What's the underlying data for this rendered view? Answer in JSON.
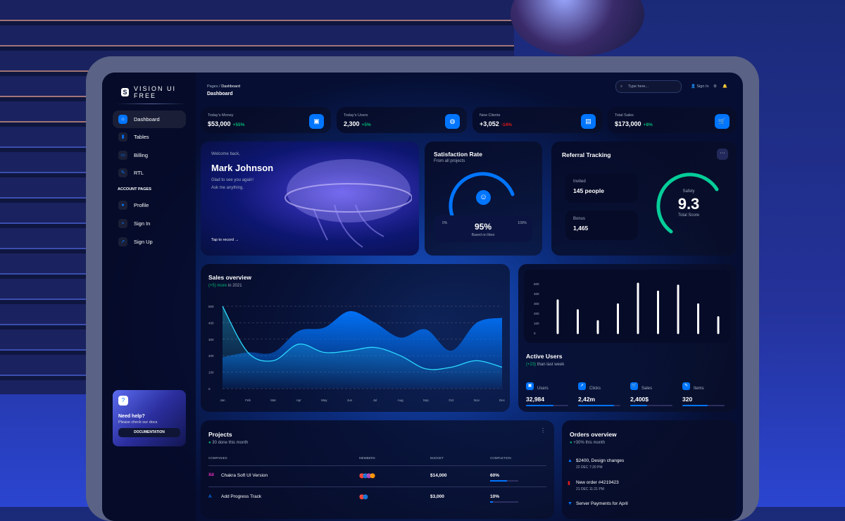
{
  "brand": "VISION UI FREE",
  "breadcrumb": {
    "parent": "Pages",
    "current": "Dashboard"
  },
  "page_title": "Dashboard",
  "search": {
    "placeholder": "Type here..."
  },
  "topbar": {
    "signin": "Sign In"
  },
  "sidebar": {
    "items": [
      {
        "label": "Dashboard",
        "icon": "home-icon",
        "active": true
      },
      {
        "label": "Tables",
        "icon": "chart-icon"
      },
      {
        "label": "Billing",
        "icon": "card-icon"
      },
      {
        "label": "RTL",
        "icon": "wrench-icon"
      }
    ],
    "section": "ACCOUNT PAGES",
    "account_items": [
      {
        "label": "Profile",
        "icon": "user-icon"
      },
      {
        "label": "Sign In",
        "icon": "document-icon"
      },
      {
        "label": "Sign Up",
        "icon": "rocket-icon"
      }
    ],
    "help": {
      "title": "Need help?",
      "subtitle": "Please check our docs",
      "button": "DOCUMENTATION"
    }
  },
  "stats": [
    {
      "label": "Today's Money",
      "value": "$53,000",
      "change": "+55%",
      "trend": "up",
      "icon": "wallet-icon"
    },
    {
      "label": "Today's Users",
      "value": "2,300",
      "change": "+5%",
      "trend": "up",
      "icon": "globe-icon"
    },
    {
      "label": "New Clients",
      "value": "+3,052",
      "change": "-14%",
      "trend": "down",
      "icon": "document-icon"
    },
    {
      "label": "Total Sales",
      "value": "$173,000",
      "change": "+8%",
      "trend": "up",
      "icon": "cart-icon"
    }
  ],
  "welcome": {
    "greeting": "Welcome back,",
    "name": "Mark Johnson",
    "line1": "Glad to see you again!",
    "line2": "Ask me anything.",
    "cta": "Tap to record"
  },
  "satisfaction": {
    "title": "Satisfaction Rate",
    "subtitle": "From all projects",
    "min": "0%",
    "max": "100%",
    "value": "95%",
    "note": "Based on likes",
    "level": 0.95
  },
  "referral": {
    "title": "Referral Tracking",
    "invited_label": "Invited",
    "invited": "145 people",
    "bonus_label": "Bonus",
    "bonus": "1,465",
    "score_label": "Safety",
    "score": "9.3",
    "score_note": "Total Score",
    "level": 0.93
  },
  "sales": {
    "title": "Sales overview",
    "highlight": "(+5) more",
    "suffix": " in 2021"
  },
  "active_users": {
    "title": "Active Users",
    "highlight": "(+23)",
    "suffix": " than last week",
    "metrics": [
      {
        "label": "Users",
        "value": "32,984",
        "icon": "wallet-icon",
        "fill": 0.65
      },
      {
        "label": "Clicks",
        "value": "2,42m",
        "icon": "rocket-icon",
        "fill": 0.85
      },
      {
        "label": "Sales",
        "value": "2,400$",
        "icon": "cart-icon",
        "fill": 0.4
      },
      {
        "label": "Items",
        "value": "320",
        "icon": "wrench-icon",
        "fill": 0.6
      }
    ]
  },
  "projects": {
    "title": "Projects",
    "summary": "30 done this month",
    "columns": [
      "COMPANIES",
      "MEMBERS",
      "BUDGET",
      "COMPLETION"
    ],
    "rows": [
      {
        "company": "Chakra Soft UI Version",
        "logo": "Xd",
        "budget": "$14,000",
        "completion": "60%",
        "fill": 0.6
      },
      {
        "company": "Add Progress Track",
        "logo": "A",
        "budget": "$3,000",
        "completion": "10%",
        "fill": 0.1
      }
    ]
  },
  "orders": {
    "title": "Orders overview",
    "summary": "+30% this month",
    "items": [
      {
        "title": "$2400, Design changes",
        "date": "22 DEC 7:20 PM",
        "icon": "bell-icon"
      },
      {
        "title": "New order #4219423",
        "date": "21 DEC 11:21 PM",
        "icon": "document-icon"
      },
      {
        "title": "Server Payments for April",
        "date": "",
        "icon": "cart-icon"
      }
    ]
  },
  "chart_data": [
    {
      "type": "area",
      "categories": [
        "Jan",
        "Feb",
        "Mar",
        "Apr",
        "May",
        "Jun",
        "Jul",
        "Aug",
        "Sep",
        "Oct",
        "Nov",
        "Dec"
      ],
      "ylim": [
        0,
        500
      ],
      "yticks": [
        0,
        100,
        200,
        300,
        400,
        500
      ],
      "grid": true,
      "series": [
        {
          "values": [
            190,
            220,
            220,
            350,
            370,
            470,
            400,
            310,
            360,
            230,
            400,
            430
          ],
          "color": "#0075ff"
        },
        {
          "values": [
            500,
            220,
            170,
            270,
            220,
            230,
            250,
            200,
            120,
            130,
            170,
            130
          ],
          "color": "#2cd9ff"
        }
      ]
    },
    {
      "type": "bar",
      "ylim": [
        0,
        500
      ],
      "yticks": [
        0,
        100,
        200,
        300,
        400,
        500
      ],
      "values": [
        330,
        230,
        120,
        290,
        500,
        420,
        480,
        290,
        160
      ],
      "color": "#ffffff"
    }
  ]
}
